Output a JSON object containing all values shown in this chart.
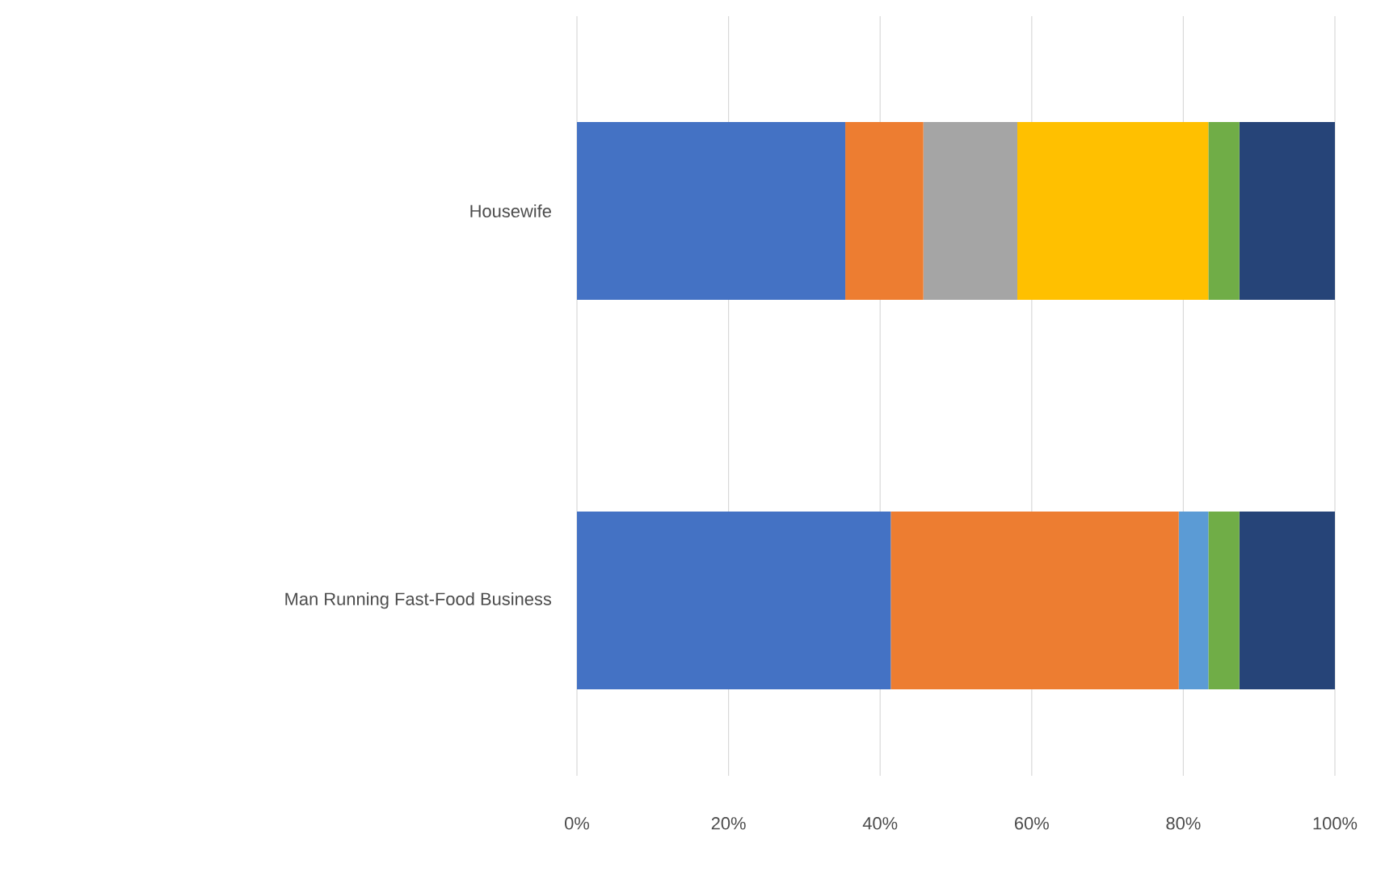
{
  "chart_data": {
    "type": "bar",
    "orientation": "horizontal",
    "stacked": true,
    "grid": "x",
    "categories": [
      "Housewife",
      "Man Running Fast-Food Business"
    ],
    "series": [
      {
        "color": "#4472c4",
        "values": [
          35.4,
          41.4
        ]
      },
      {
        "color": "#ed7d31",
        "values": [
          10.3,
          38.0
        ]
      },
      {
        "color": "#a5a5a5",
        "values": [
          12.4,
          0
        ]
      },
      {
        "color": "#ffc000",
        "values": [
          25.2,
          0
        ]
      },
      {
        "color": "#5b9bd5",
        "values": [
          0,
          3.9
        ]
      },
      {
        "color": "#70ad47",
        "values": [
          4.1,
          4.1
        ]
      },
      {
        "color": "#264478",
        "values": [
          12.6,
          12.6
        ]
      }
    ],
    "xlim": [
      0,
      100
    ],
    "xticks": [
      {
        "value": 0,
        "label": "0%"
      },
      {
        "value": 20,
        "label": "20%"
      },
      {
        "value": 40,
        "label": "40%"
      },
      {
        "value": 60,
        "label": "60%"
      },
      {
        "value": 80,
        "label": "80%"
      },
      {
        "value": 100,
        "label": "100%"
      }
    ]
  }
}
